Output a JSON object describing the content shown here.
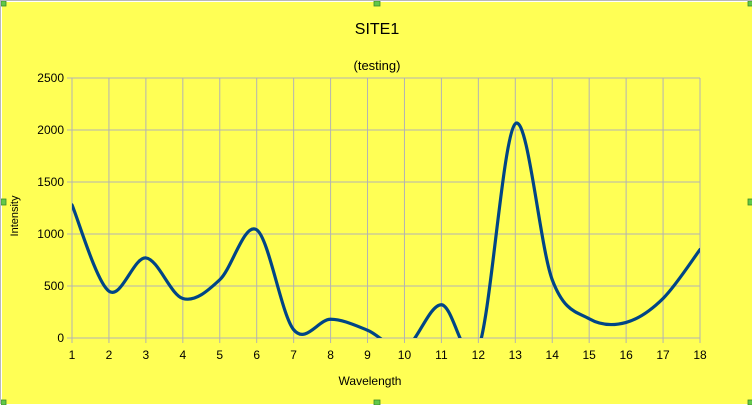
{
  "chart_data": {
    "type": "line",
    "title": "SITE1",
    "subtitle": "(testing)",
    "xlabel": "Wavelength",
    "ylabel": "Intensity",
    "x": [
      1,
      2,
      3,
      4,
      5,
      6,
      7,
      8,
      9,
      10,
      11,
      12,
      13,
      14,
      15,
      16,
      17,
      18
    ],
    "series": [
      {
        "values": [
          1280,
          450,
          770,
          380,
          560,
          1040,
          80,
          180,
          75,
          -100,
          320,
          -100,
          2060,
          560,
          185,
          150,
          380,
          850
        ]
      }
    ],
    "xlim": [
      1,
      18
    ],
    "ylim": [
      0,
      2500
    ],
    "yticks": [
      0,
      500,
      1000,
      1500,
      2000,
      2500
    ],
    "grid": true,
    "smooth": true,
    "background_color": "#ffff55",
    "line_color": "#004586",
    "grid_color": "#b3b3b3"
  }
}
